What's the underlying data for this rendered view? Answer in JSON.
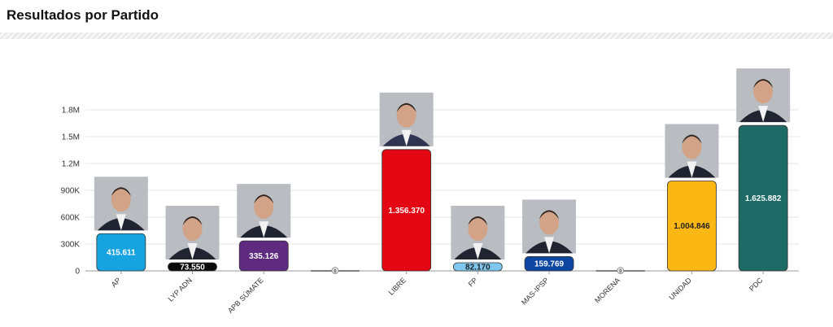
{
  "header": {
    "title": "Resultados por Partido"
  },
  "chart_data": {
    "type": "bar",
    "title": "Resultados por Partido",
    "xlabel": "",
    "ylabel": "",
    "ylim": [
      0,
      1800000
    ],
    "yticks": [
      0,
      300000,
      600000,
      900000,
      1200000,
      1500000,
      1800000
    ],
    "ytick_labels": [
      "0",
      "300K",
      "600K",
      "900K",
      "1.2M",
      "1.5M",
      "1.8M"
    ],
    "grid": true,
    "categories": [
      "AP",
      "LYP ADN",
      "APB SÚMATE",
      "",
      "LIBRE",
      "FP",
      "MAS-IPSP",
      "MORENA",
      "UNIDAD",
      "PDC"
    ],
    "values": [
      415611,
      73550,
      335126,
      0,
      1356370,
      82170,
      159769,
      0,
      1004846,
      1625882
    ],
    "data_labels": [
      "415.611",
      "73.550",
      "335.126",
      "0",
      "1.356.370",
      "82.170",
      "159.769",
      "0",
      "1.004.846",
      "1.625.882"
    ],
    "colors": [
      "#16a3e0",
      "#0a0a0a",
      "#5e2b80",
      "#d9d9d9",
      "#e30613",
      "#7fc7ef",
      "#0d47a1",
      "#2e7d5e",
      "#fbb714",
      "#1e6a66"
    ],
    "label_colors": [
      "#ffffff",
      "#ffffff",
      "#ffffff",
      "#555555",
      "#ffffff",
      "#222222",
      "#ffffff",
      "#555555",
      "#222222",
      "#ffffff"
    ],
    "has_photo": [
      true,
      true,
      true,
      false,
      true,
      true,
      true,
      false,
      true,
      true
    ]
  }
}
